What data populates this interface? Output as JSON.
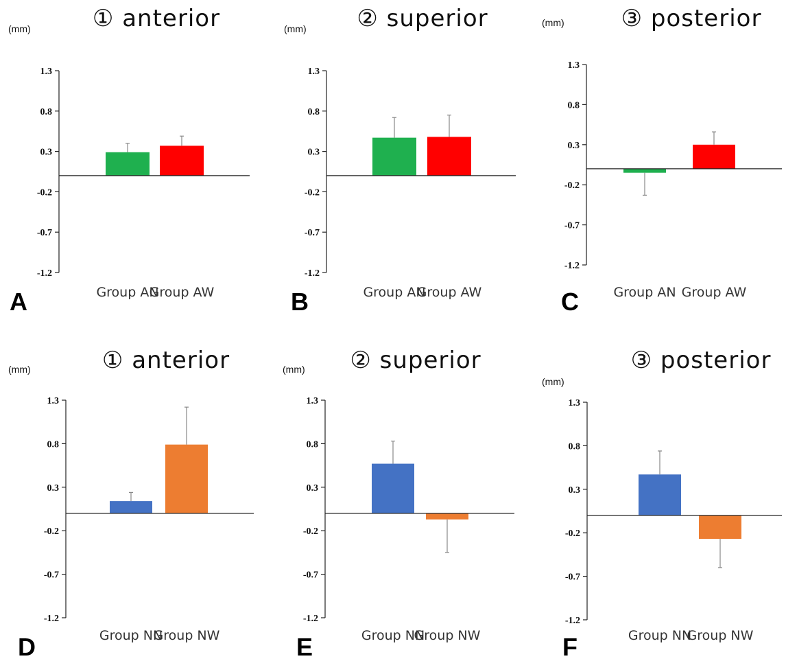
{
  "chart_data": [
    {
      "type": "bar",
      "panel": "A",
      "title": "① anterior",
      "unit": "(mm)",
      "yticks": [
        "1.3",
        "0.8",
        "0.3",
        "-0.2",
        "-0.7",
        "-1.2"
      ],
      "ylim": [
        -1.2,
        1.3
      ],
      "categories": [
        "Group AN",
        "Group AW"
      ],
      "values": [
        0.29,
        0.37
      ],
      "errors": [
        0.11,
        0.12
      ],
      "colors": [
        "#1fb04f",
        "#ff0000"
      ]
    },
    {
      "type": "bar",
      "panel": "B",
      "title": "② superior",
      "unit": "(mm)",
      "yticks": [
        "1.3",
        "0.8",
        "0.3",
        "-0.2",
        "-0.7",
        "-1.2"
      ],
      "ylim": [
        -1.2,
        1.3
      ],
      "categories": [
        "Group AN",
        "Group AW"
      ],
      "values": [
        0.47,
        0.48
      ],
      "errors": [
        0.25,
        0.27
      ],
      "colors": [
        "#1fb04f",
        "#ff0000"
      ]
    },
    {
      "type": "bar",
      "panel": "C",
      "title": "③ posterior",
      "unit": "(mm)",
      "yticks": [
        "1.3",
        "0.8",
        "0.3",
        "-0.2",
        "-0.7",
        "-1.2"
      ],
      "ylim": [
        -1.2,
        1.3
      ],
      "categories": [
        "Group AN",
        "Group AW"
      ],
      "values": [
        -0.05,
        0.3
      ],
      "errors": [
        0.28,
        0.16
      ],
      "colors": [
        "#1fb04f",
        "#ff0000"
      ]
    },
    {
      "type": "bar",
      "panel": "D",
      "title": "① anterior",
      "unit": "(mm)",
      "yticks": [
        "1.3",
        "0.8",
        "0.3",
        "-0.2",
        "-0.7",
        "-1.2"
      ],
      "ylim": [
        -1.2,
        1.3
      ],
      "categories": [
        "Group NN",
        "Group NW"
      ],
      "values": [
        0.14,
        0.79
      ],
      "errors": [
        0.1,
        0.43
      ],
      "colors": [
        "#4472c4",
        "#ed7d31"
      ]
    },
    {
      "type": "bar",
      "panel": "E",
      "title": "② superior",
      "unit": "(mm)",
      "yticks": [
        "1.3",
        "0.8",
        "0.3",
        "-0.2",
        "-0.7",
        "-1.2"
      ],
      "ylim": [
        -1.2,
        1.3
      ],
      "categories": [
        "Group NN",
        "Group NW"
      ],
      "values": [
        0.57,
        -0.07
      ],
      "errors": [
        0.26,
        0.38
      ],
      "colors": [
        "#4472c4",
        "#ed7d31"
      ]
    },
    {
      "type": "bar",
      "panel": "F",
      "title": "③ posterior",
      "unit": "(mm)",
      "yticks": [
        "1.3",
        "0.8",
        "0.3",
        "-0.2",
        "-0.7",
        "-1.2"
      ],
      "ylim": [
        -1.2,
        1.3
      ],
      "categories": [
        "Group NN",
        "Group NW"
      ],
      "values": [
        0.47,
        -0.27
      ],
      "errors": [
        0.27,
        0.33
      ],
      "colors": [
        "#4472c4",
        "#ed7d31"
      ]
    }
  ]
}
